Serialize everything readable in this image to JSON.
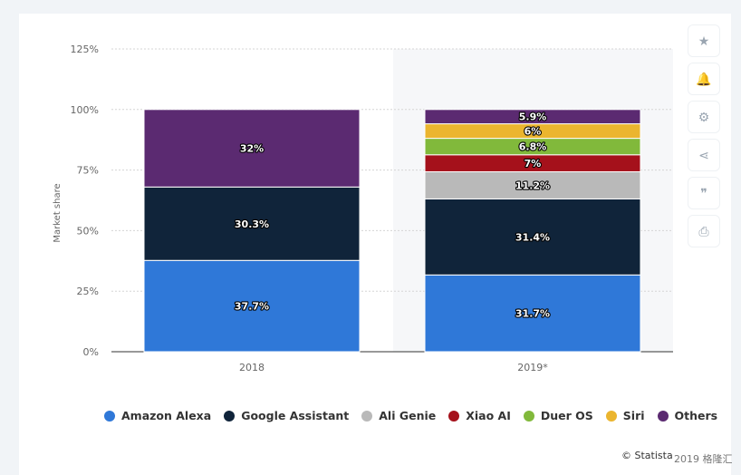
{
  "chart_data": {
    "type": "bar",
    "stacked": true,
    "categories": [
      "2018",
      "2019*"
    ],
    "series": [
      {
        "name": "Amazon Alexa",
        "color": "#2f78d8",
        "values": [
          37.7,
          31.7
        ],
        "labels": [
          "37.7%",
          "31.7%"
        ]
      },
      {
        "name": "Google Assistant",
        "color": "#10243a",
        "values": [
          30.3,
          31.4
        ],
        "labels": [
          "30.3%",
          "31.4%"
        ]
      },
      {
        "name": "Ali Genie",
        "color": "#b9b9b9",
        "values": [
          0,
          11.2
        ],
        "labels": [
          "",
          "11.2%"
        ]
      },
      {
        "name": "Xiao AI",
        "color": "#a5111b",
        "values": [
          0,
          7
        ],
        "labels": [
          "",
          "7%"
        ]
      },
      {
        "name": "Duer OS",
        "color": "#81b93b",
        "values": [
          0,
          6.8
        ],
        "labels": [
          "",
          "6.8%"
        ]
      },
      {
        "name": "Siri",
        "color": "#ebb52f",
        "values": [
          0,
          6
        ],
        "labels": [
          "",
          "6%"
        ]
      },
      {
        "name": "Others",
        "color": "#5b2a71",
        "values": [
          32,
          5.9
        ],
        "labels": [
          "32%",
          "5.9%"
        ]
      }
    ],
    "ylabel": "Market share",
    "ylim": [
      0,
      125
    ],
    "yticks": [
      "0%",
      "25%",
      "50%",
      "75%",
      "100%",
      "125%"
    ],
    "grid": true,
    "highlighted_category": "2019*",
    "legend_position": "bottom"
  },
  "side_buttons": [
    {
      "icon": "star-icon",
      "glyph": "★"
    },
    {
      "icon": "bell-icon",
      "glyph": "🔔"
    },
    {
      "icon": "gear-icon",
      "glyph": "⚙"
    },
    {
      "icon": "share-icon",
      "glyph": "⋖"
    },
    {
      "icon": "quote-icon",
      "glyph": "❞"
    },
    {
      "icon": "print-icon",
      "glyph": "⎙"
    }
  ],
  "credit": "© Statista",
  "watermark": "2019 格隆汇"
}
